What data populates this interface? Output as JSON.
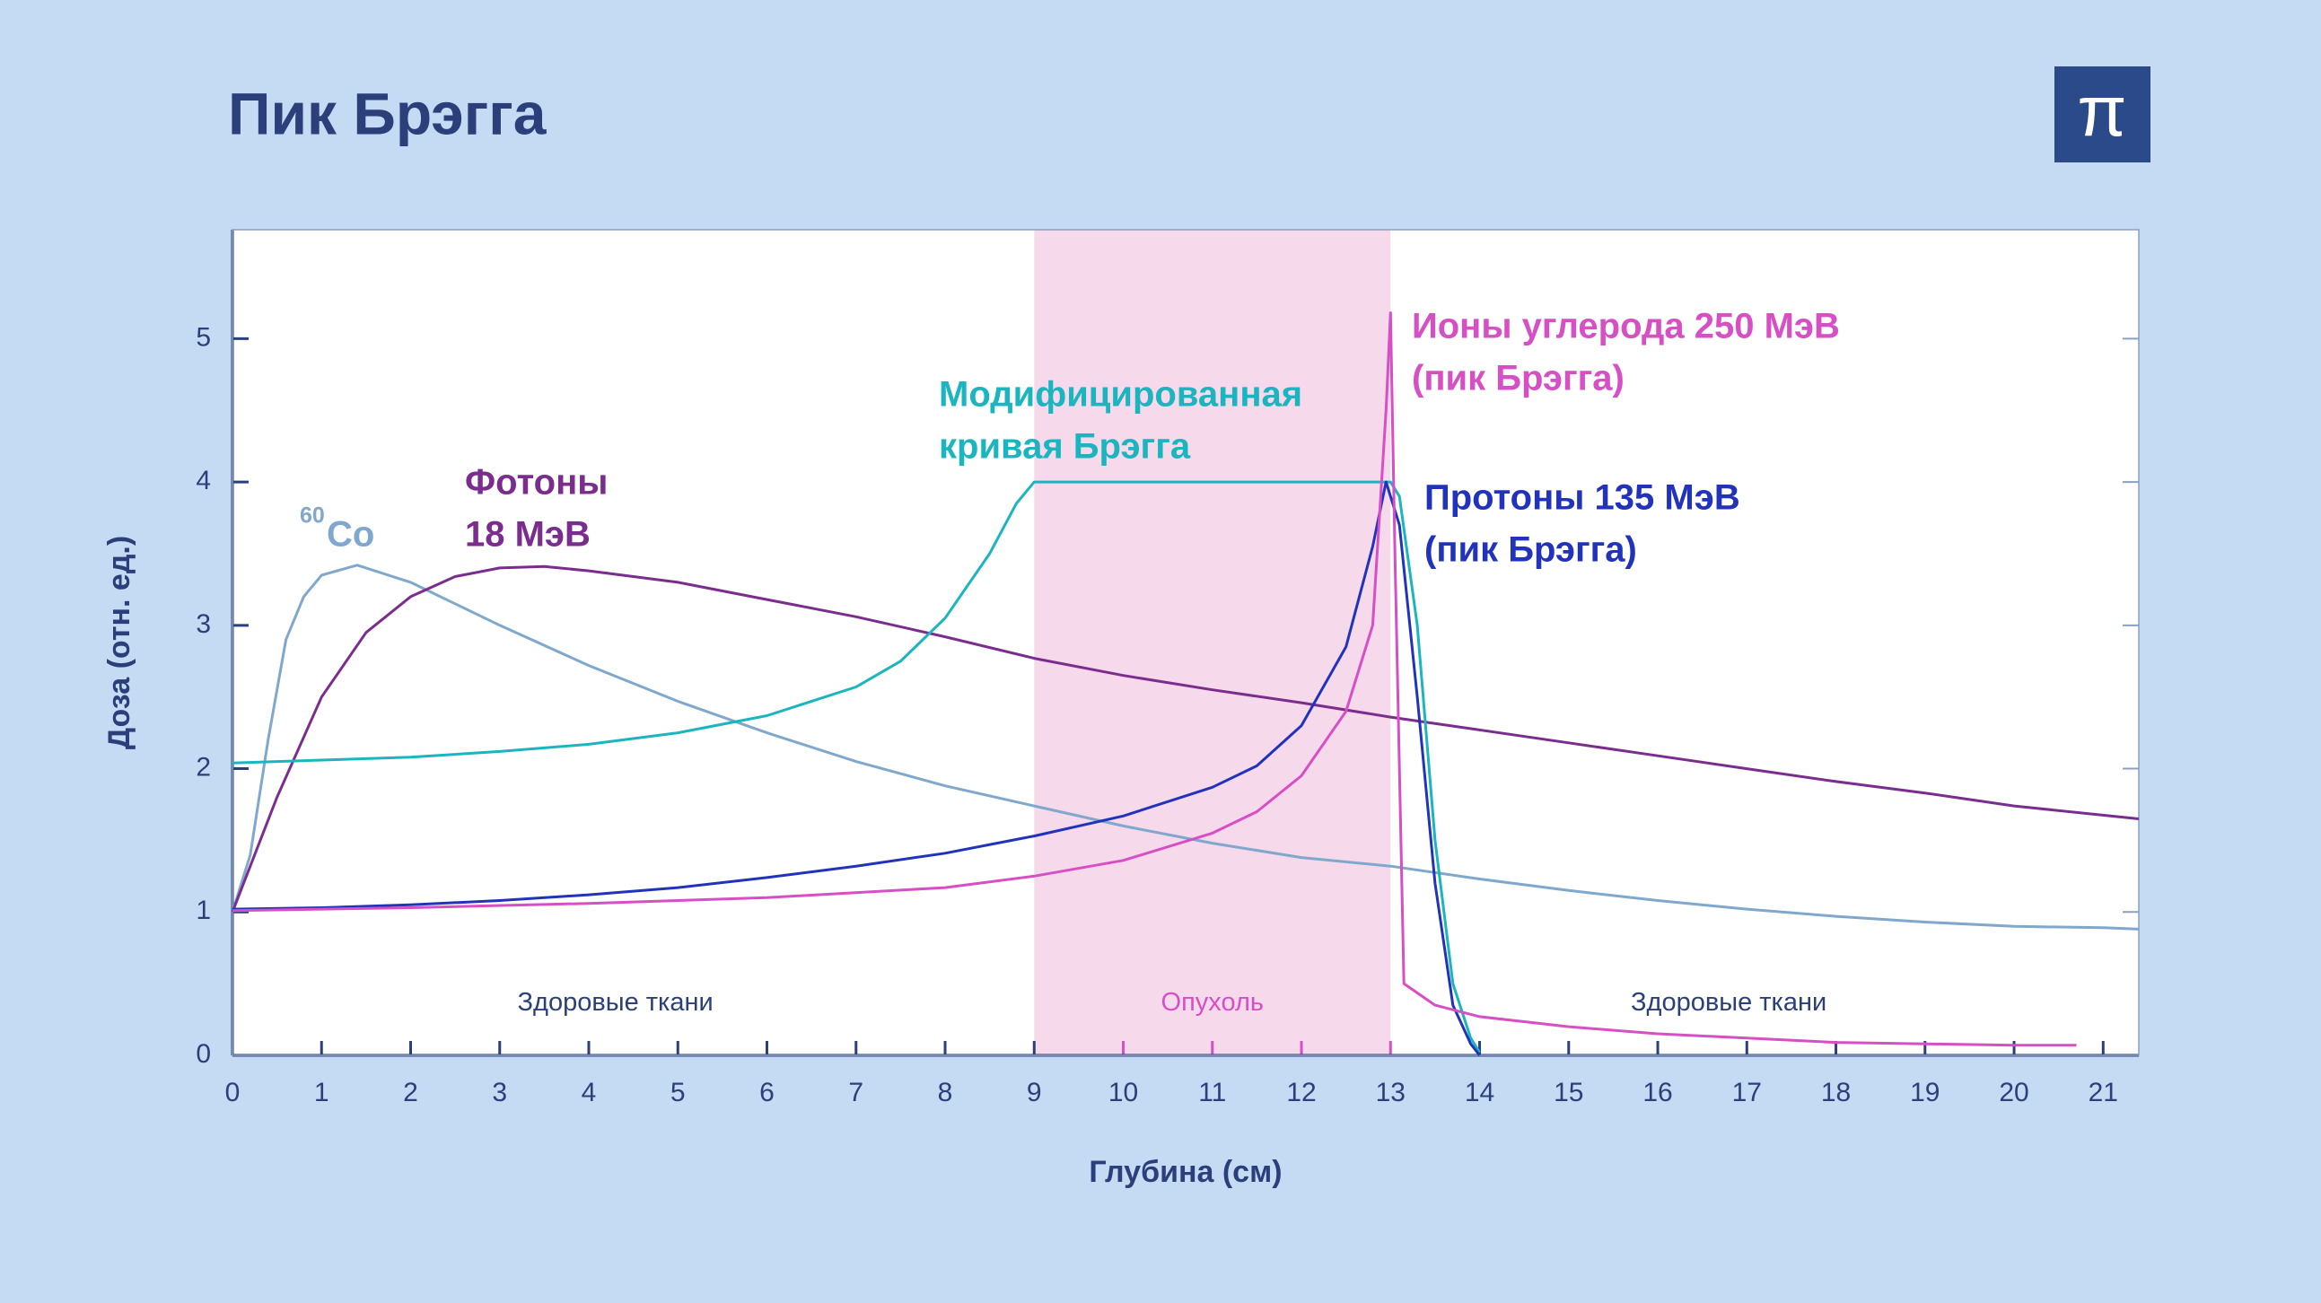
{
  "chart_data": {
    "type": "line",
    "title": "Пик Брэгга",
    "logo": "π",
    "x_label": "Глубина (см)",
    "y_label": "Доза (отн. ед.)",
    "xlim": [
      0,
      21.4
    ],
    "ylim": [
      0,
      5.76
    ],
    "xticks": [
      0,
      1,
      2,
      3,
      4,
      5,
      6,
      7,
      8,
      9,
      10,
      11,
      12,
      13,
      14,
      15,
      16,
      17,
      18,
      19,
      20,
      21
    ],
    "yticks": [
      0,
      1,
      2,
      3,
      4,
      5
    ],
    "regions": [
      {
        "label": "Здоровые ткани",
        "x": [
          0,
          9
        ],
        "color": "#ffffff",
        "text_color": "#2b3f7a"
      },
      {
        "label": "Опухоль",
        "x": [
          9,
          13
        ],
        "color": "#f6d9eb",
        "text_color": "#d64fc4"
      },
      {
        "label": "Здоровые ткани",
        "x": [
          13,
          21.4
        ],
        "color": "#ffffff",
        "text_color": "#2b3f7a"
      }
    ],
    "series": [
      {
        "label": [
          "Co"
        ],
        "isotope": "60",
        "color": "#7fa8cc",
        "x": [
          0,
          0.2,
          0.4,
          0.6,
          0.8,
          1.0,
          1.4,
          2,
          3,
          4,
          5,
          6,
          7,
          8,
          9,
          10,
          11,
          12,
          13,
          14,
          15,
          16,
          17,
          18,
          19,
          20,
          21,
          21.4
        ],
        "values": [
          1.0,
          1.4,
          2.2,
          2.9,
          3.2,
          3.35,
          3.42,
          3.3,
          3.0,
          2.72,
          2.47,
          2.25,
          2.05,
          1.88,
          1.74,
          1.6,
          1.48,
          1.38,
          1.32,
          1.23,
          1.15,
          1.08,
          1.02,
          0.97,
          0.93,
          0.9,
          0.89,
          0.88
        ]
      },
      {
        "label": [
          "Фотоны",
          "18 МэВ"
        ],
        "color": "#7b2d8e",
        "x": [
          0,
          0.5,
          1,
          1.5,
          2,
          2.5,
          3,
          3.5,
          4,
          5,
          6,
          7,
          8,
          9,
          10,
          11,
          12,
          13,
          14,
          15,
          16,
          17,
          18,
          19,
          20,
          21.4
        ],
        "values": [
          1.0,
          1.8,
          2.5,
          2.95,
          3.2,
          3.34,
          3.4,
          3.41,
          3.38,
          3.3,
          3.18,
          3.06,
          2.92,
          2.77,
          2.65,
          2.55,
          2.46,
          2.36,
          2.27,
          2.18,
          2.09,
          2.0,
          1.91,
          1.83,
          1.74,
          1.65
        ]
      },
      {
        "label": [
          "Модифицированная",
          "кривая Брэгга"
        ],
        "color": "#1bb5c0",
        "x": [
          0,
          1,
          2,
          3,
          4,
          5,
          6,
          7,
          7.5,
          8,
          8.5,
          8.8,
          9,
          10,
          11,
          12,
          13,
          13.1,
          13.3,
          13.5,
          13.7,
          13.9,
          14
        ],
        "values": [
          2.04,
          2.06,
          2.08,
          2.12,
          2.17,
          2.25,
          2.37,
          2.57,
          2.75,
          3.05,
          3.5,
          3.85,
          4.0,
          4.0,
          4.0,
          4.0,
          4.0,
          3.9,
          3.0,
          1.5,
          0.5,
          0.12,
          0.02
        ]
      },
      {
        "label": [
          "Протоны 135 МэВ",
          "(пик Брэгга)"
        ],
        "color": "#2233bb",
        "x": [
          0,
          1,
          2,
          3,
          4,
          5,
          6,
          7,
          8,
          9,
          10,
          11,
          11.5,
          12,
          12.5,
          12.8,
          12.95,
          13.1,
          13.3,
          13.5,
          13.7,
          13.9,
          14
        ],
        "values": [
          1.02,
          1.03,
          1.05,
          1.08,
          1.12,
          1.17,
          1.24,
          1.32,
          1.41,
          1.53,
          1.67,
          1.87,
          2.02,
          2.3,
          2.85,
          3.55,
          4.0,
          3.7,
          2.5,
          1.2,
          0.35,
          0.08,
          0.0
        ]
      },
      {
        "label": [
          "Ионы углерода 250 МэВ",
          "(пик Брэгга)"
        ],
        "color": "#d64fc4",
        "x": [
          0,
          2,
          4,
          6,
          8,
          9,
          10,
          11,
          11.5,
          12,
          12.5,
          12.8,
          12.95,
          13,
          13.05,
          13.15,
          13.5,
          14,
          15,
          16,
          17,
          18,
          19,
          20,
          20.7
        ],
        "values": [
          1.01,
          1.03,
          1.06,
          1.1,
          1.17,
          1.25,
          1.36,
          1.55,
          1.7,
          1.95,
          2.4,
          3.0,
          4.5,
          5.18,
          3.5,
          0.5,
          0.35,
          0.27,
          0.2,
          0.15,
          0.12,
          0.09,
          0.08,
          0.07,
          0.07
        ]
      }
    ]
  }
}
